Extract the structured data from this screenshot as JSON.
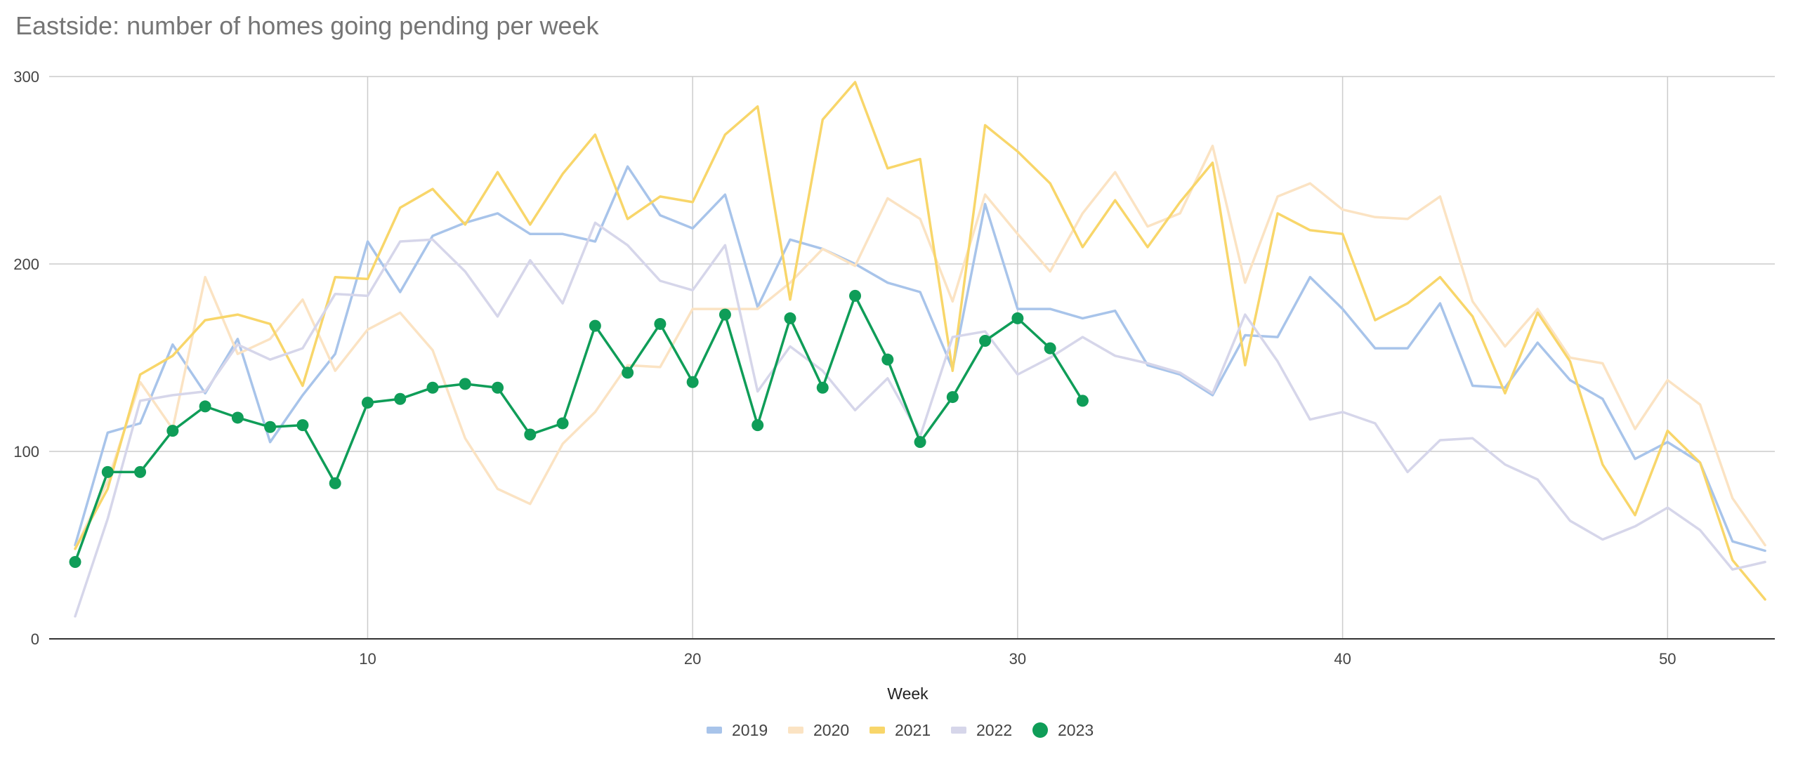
{
  "chart_data": {
    "type": "line",
    "title": "Eastside: number of homes going pending per week",
    "xlabel": "Week",
    "ylabel": "",
    "xlim": [
      0.2,
      53.3
    ],
    "ylim": [
      0,
      300
    ],
    "xticks": [
      10,
      20,
      30,
      40,
      50
    ],
    "yticks": [
      0,
      100,
      200,
      300
    ],
    "grid": true,
    "legend_position": "bottom",
    "series": [
      {
        "name": "2019",
        "color": "#a8c4ea",
        "markers": false,
        "x": [
          1,
          2,
          3,
          4,
          5,
          6,
          7,
          8,
          9,
          10,
          11,
          12,
          13,
          14,
          15,
          16,
          17,
          18,
          19,
          20,
          21,
          22,
          23,
          24,
          25,
          26,
          27,
          28,
          29,
          30,
          31,
          32,
          33,
          34,
          35,
          36,
          37,
          38,
          39,
          40,
          41,
          42,
          43,
          44,
          45,
          46,
          47,
          48,
          49,
          50,
          51,
          52,
          53
        ],
        "values": [
          50,
          110,
          115,
          157,
          131,
          160,
          105,
          130,
          152,
          212,
          185,
          215,
          222,
          227,
          216,
          216,
          212,
          252,
          226,
          219,
          237,
          177,
          213,
          208,
          200,
          190,
          185,
          144,
          232,
          176,
          176,
          171,
          175,
          146,
          141,
          130,
          162,
          161,
          193,
          176,
          155,
          155,
          179,
          135,
          134,
          158,
          138,
          128,
          96,
          105,
          94,
          52,
          47
        ]
      },
      {
        "name": "2020",
        "color": "#fbe3c3",
        "markers": false,
        "x": [
          1,
          2,
          3,
          4,
          5,
          6,
          7,
          8,
          9,
          10,
          11,
          12,
          13,
          14,
          15,
          16,
          17,
          18,
          19,
          20,
          21,
          22,
          23,
          24,
          25,
          26,
          27,
          28,
          29,
          30,
          31,
          32,
          33,
          34,
          35,
          36,
          37,
          38,
          39,
          40,
          41,
          42,
          43,
          44,
          45,
          46,
          47,
          48,
          49,
          50,
          51,
          52,
          53
        ],
        "values": [
          48,
          84,
          137,
          112,
          193,
          152,
          160,
          181,
          143,
          165,
          174,
          154,
          107,
          80,
          72,
          104,
          121,
          146,
          145,
          176,
          176,
          176,
          190,
          208,
          199,
          235,
          224,
          180,
          237,
          216,
          196,
          227,
          249,
          220,
          227,
          263,
          190,
          236,
          243,
          229,
          225,
          224,
          236,
          180,
          156,
          176,
          150,
          147,
          112,
          138,
          125,
          75,
          50
        ]
      },
      {
        "name": "2021",
        "color": "#f8d66a",
        "markers": false,
        "x": [
          1,
          2,
          3,
          4,
          5,
          6,
          7,
          8,
          9,
          10,
          11,
          12,
          13,
          14,
          15,
          16,
          17,
          18,
          19,
          20,
          21,
          22,
          23,
          24,
          25,
          26,
          27,
          28,
          29,
          30,
          31,
          32,
          33,
          34,
          35,
          36,
          37,
          38,
          39,
          40,
          41,
          42,
          43,
          44,
          45,
          46,
          47,
          48,
          49,
          50,
          51,
          52,
          53
        ],
        "values": [
          48,
          80,
          141,
          151,
          170,
          173,
          168,
          135,
          193,
          192,
          230,
          240,
          221,
          249,
          221,
          248,
          269,
          224,
          236,
          233,
          269,
          284,
          181,
          277,
          297,
          251,
          256,
          143,
          274,
          260,
          243,
          209,
          234,
          209,
          233,
          254,
          146,
          227,
          218,
          216,
          170,
          179,
          193,
          172,
          131,
          174,
          148,
          93,
          66,
          111,
          94,
          42,
          21
        ]
      },
      {
        "name": "2022",
        "color": "#d6d6ea",
        "markers": false,
        "x": [
          1,
          2,
          3,
          4,
          5,
          6,
          7,
          8,
          9,
          10,
          11,
          12,
          13,
          14,
          15,
          16,
          17,
          18,
          19,
          20,
          21,
          22,
          23,
          24,
          25,
          26,
          27,
          28,
          29,
          30,
          31,
          32,
          33,
          34,
          35,
          36,
          37,
          38,
          39,
          40,
          41,
          42,
          43,
          44,
          45,
          46,
          47,
          48,
          49,
          50,
          51,
          52,
          53
        ],
        "values": [
          12,
          64,
          127,
          130,
          132,
          157,
          149,
          155,
          184,
          183,
          212,
          213,
          196,
          172,
          202,
          179,
          222,
          210,
          191,
          186,
          210,
          132,
          156,
          143,
          122,
          139,
          108,
          161,
          164,
          141,
          150,
          161,
          151,
          147,
          142,
          131,
          173,
          148,
          117,
          121,
          115,
          89,
          106,
          107,
          93,
          85,
          63,
          53,
          60,
          70,
          58,
          37,
          41
        ]
      },
      {
        "name": "2023",
        "color": "#0f9d58",
        "markers": true,
        "x": [
          1,
          2,
          3,
          4,
          5,
          6,
          7,
          8,
          9,
          10,
          11,
          12,
          13,
          14,
          15,
          16,
          17,
          18,
          19,
          20,
          21,
          22,
          23,
          24,
          25,
          26,
          27,
          28,
          29,
          30,
          31,
          32
        ],
        "values": [
          41,
          89,
          89,
          111,
          124,
          118,
          113,
          114,
          83,
          126,
          128,
          134,
          136,
          134,
          109,
          115,
          167,
          142,
          168,
          137,
          173,
          114,
          171,
          134,
          183,
          149,
          105,
          129,
          159,
          171,
          155,
          127
        ]
      }
    ]
  }
}
